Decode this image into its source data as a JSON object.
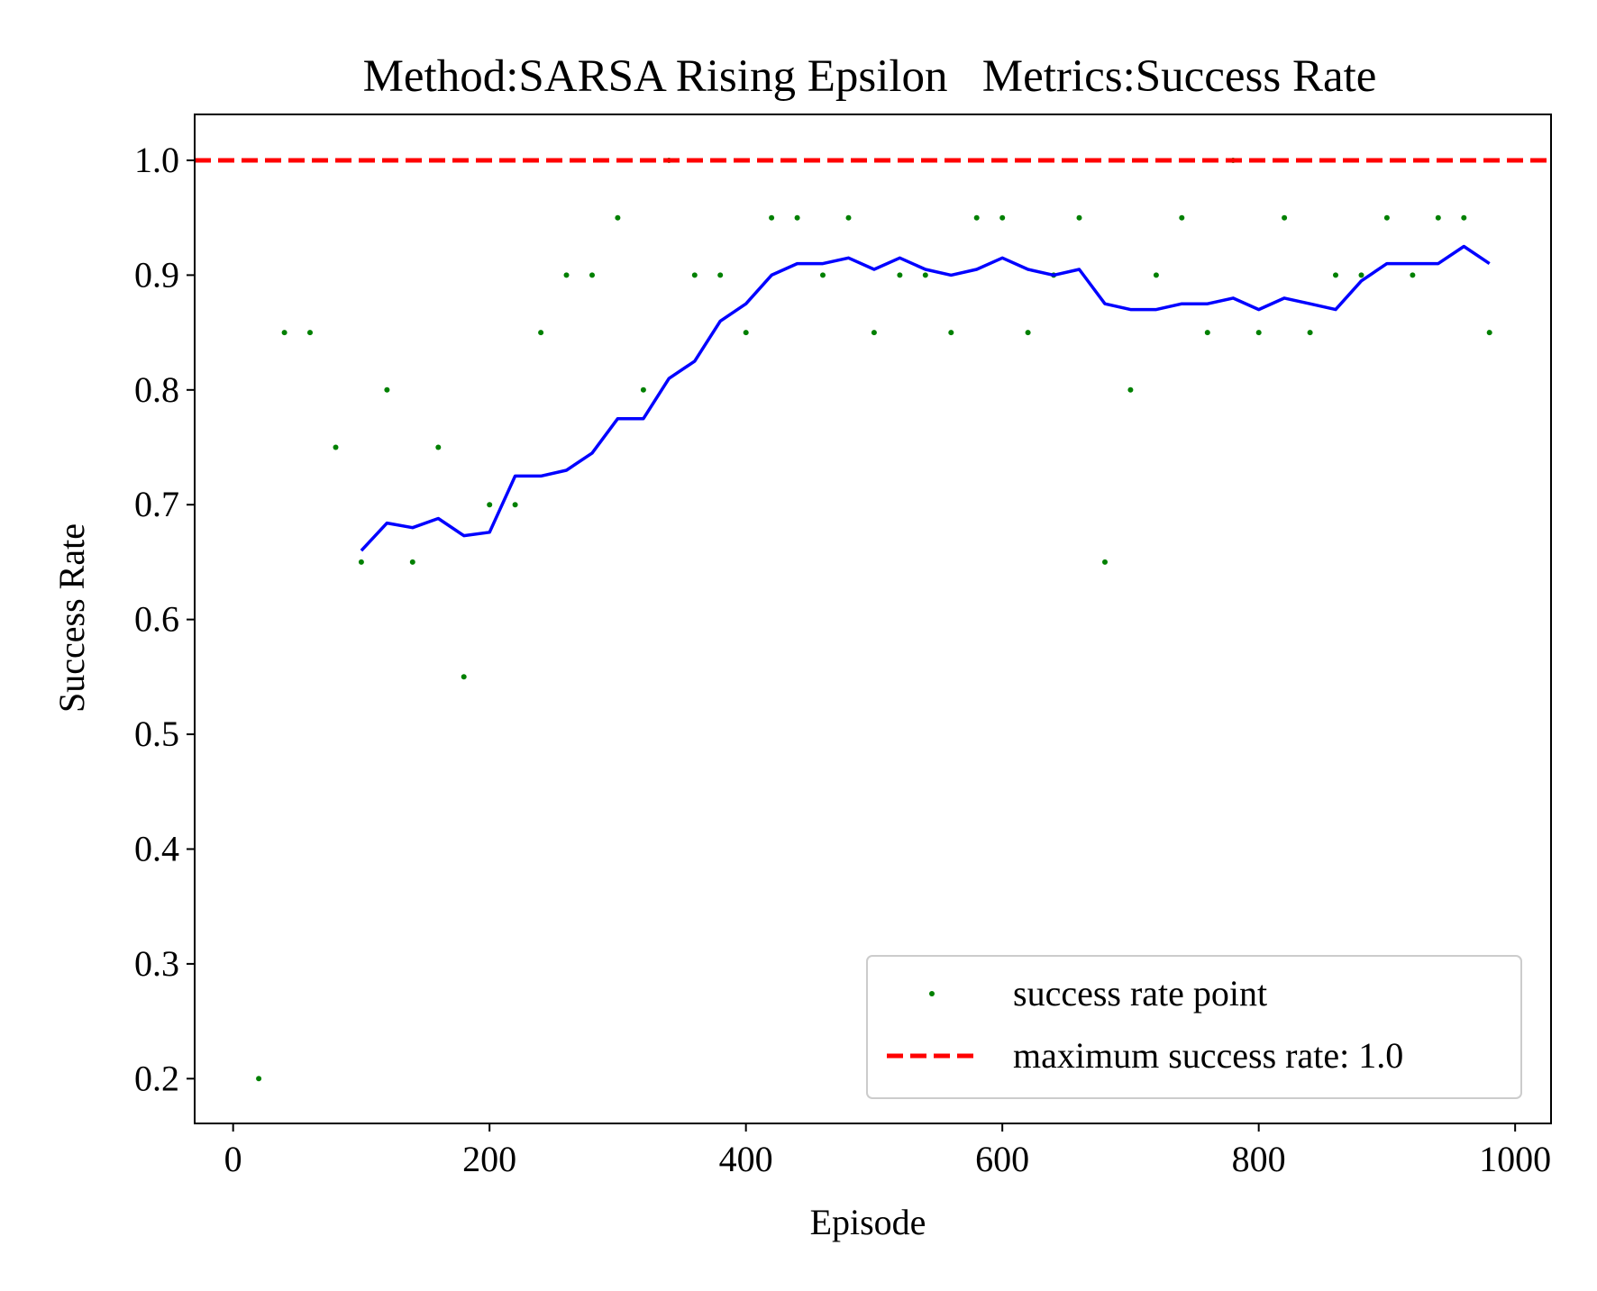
{
  "chart_data": {
    "type": "scatter",
    "title": "Method:SARSA Rising Epsilon   Metrics:Success Rate",
    "xlabel": "Episode",
    "ylabel": "Success Rate",
    "xlim": [
      -30,
      1028
    ],
    "ylim": [
      0.161,
      1.04
    ],
    "x_ticks": [
      0,
      200,
      400,
      600,
      800,
      1000
    ],
    "y_ticks": [
      0.2,
      0.3,
      0.4,
      0.5,
      0.6,
      0.7,
      0.8,
      0.9,
      1.0
    ],
    "grid": false,
    "legend_position": "lower-right",
    "series": [
      {
        "name": "success rate point",
        "type": "scatter",
        "color": "#008000",
        "x": [
          20,
          40,
          60,
          80,
          100,
          120,
          140,
          160,
          180,
          200,
          220,
          240,
          260,
          280,
          300,
          320,
          340,
          360,
          380,
          400,
          420,
          440,
          460,
          480,
          500,
          520,
          540,
          560,
          580,
          600,
          620,
          640,
          660,
          680,
          700,
          720,
          740,
          760,
          780,
          800,
          820,
          840,
          860,
          880,
          900,
          920,
          940,
          960,
          980
        ],
        "y": [
          0.2,
          0.85,
          0.85,
          0.75,
          0.65,
          0.8,
          0.65,
          0.75,
          0.55,
          0.7,
          0.7,
          0.85,
          0.9,
          0.9,
          0.95,
          0.8,
          1.0,
          0.9,
          0.9,
          0.85,
          0.95,
          0.95,
          0.9,
          0.95,
          0.85,
          0.9,
          0.9,
          0.85,
          0.95,
          0.95,
          0.85,
          0.9,
          0.95,
          0.65,
          0.8,
          0.9,
          0.95,
          0.85,
          1.0,
          0.85,
          0.95,
          0.85,
          0.9,
          0.9,
          0.95,
          0.9,
          0.95,
          0.95,
          0.85
        ]
      },
      {
        "type": "line",
        "color": "#0000ff",
        "x": [
          100,
          120,
          140,
          160,
          180,
          200,
          220,
          240,
          260,
          280,
          300,
          320,
          340,
          360,
          380,
          400,
          420,
          440,
          460,
          480,
          500,
          520,
          540,
          560,
          580,
          600,
          620,
          640,
          660,
          680,
          700,
          720,
          740,
          760,
          780,
          800,
          820,
          840,
          860,
          880,
          900,
          920,
          940,
          960,
          980
        ],
        "y": [
          0.66,
          0.684,
          0.68,
          0.688,
          0.673,
          0.676,
          0.725,
          0.725,
          0.73,
          0.745,
          0.775,
          0.775,
          0.81,
          0.825,
          0.86,
          0.875,
          0.9,
          0.91,
          0.91,
          0.915,
          0.905,
          0.915,
          0.905,
          0.9,
          0.905,
          0.915,
          0.905,
          0.9,
          0.905,
          0.875,
          0.87,
          0.87,
          0.875,
          0.875,
          0.88,
          0.87,
          0.88,
          0.875,
          0.87,
          0.895,
          0.91,
          0.91,
          0.91,
          0.925,
          0.91
        ]
      },
      {
        "name": "maximum success rate: 1.0",
        "type": "hline",
        "color": "#ff0000",
        "y": 1.0,
        "dashed": true
      }
    ]
  }
}
